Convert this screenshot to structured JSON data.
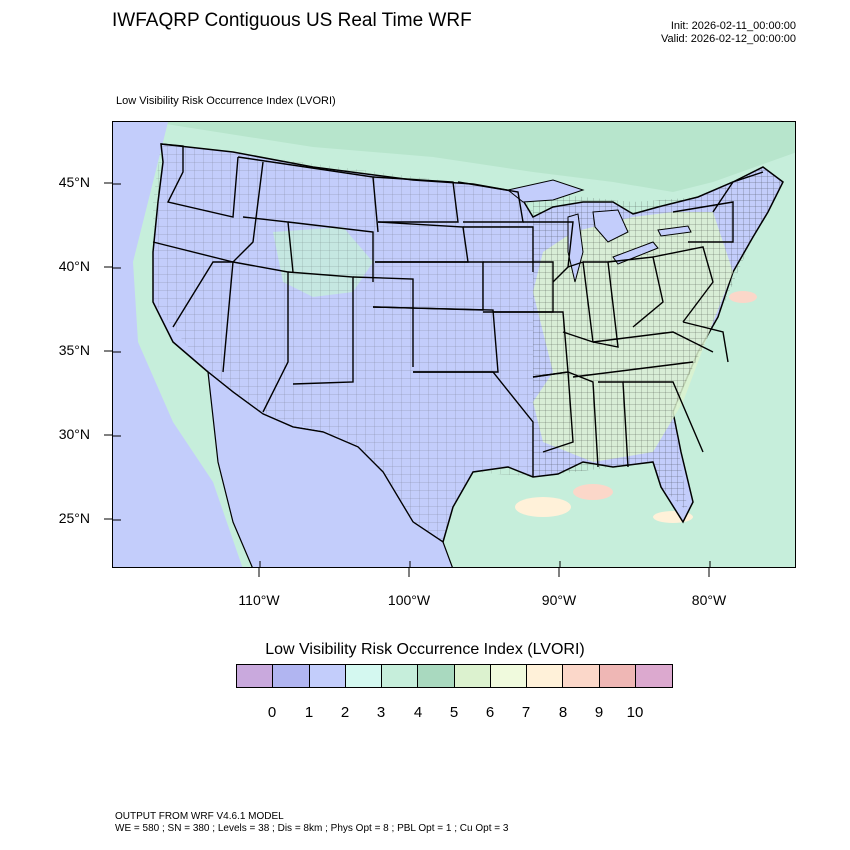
{
  "header": {
    "title": "IWFAQRP Contiguous US Real Time WRF",
    "init": "Init: 2026-02-11_00:00:00",
    "valid": "Valid: 2026-02-12_00:00:00"
  },
  "map": {
    "subtitle": "Low Visibility Risk Occurrence Index   (LVORI)",
    "lat_labels": [
      "45°N",
      "40°N",
      "35°N",
      "30°N",
      "25°N"
    ],
    "lon_labels": [
      "110°W",
      "100°W",
      "90°W",
      "80°W"
    ],
    "colors": {
      "water": "#c3cdfb",
      "land_low": "#c3cdfb",
      "land_mid": "#c6eedb",
      "land_high": "#a9d9bf",
      "state_border": "#000000",
      "county_border": "#222222"
    }
  },
  "colorbar": {
    "title": "Low Visibility Risk Occurrence Index  (LVORI)",
    "colors": [
      "#c9a9dd",
      "#b1b5f1",
      "#c3cdfb",
      "#d4f8f0",
      "#c6eedb",
      "#a9d9bf",
      "#dcf2cf",
      "#f0fadd",
      "#fff1d9",
      "#fbd7c9",
      "#efb7b5",
      "#dca9cf"
    ],
    "labels": [
      "0",
      "1",
      "2",
      "3",
      "4",
      "5",
      "6",
      "7",
      "8",
      "9",
      "10"
    ]
  },
  "footer": {
    "line1": "OUTPUT FROM WRF V4.6.1 MODEL",
    "line2": "WE = 580 ; SN = 380 ; Levels = 38 ; Dis = 8km ; Phys Opt = 8 ; PBL Opt = 1 ; Cu Opt = 3"
  }
}
